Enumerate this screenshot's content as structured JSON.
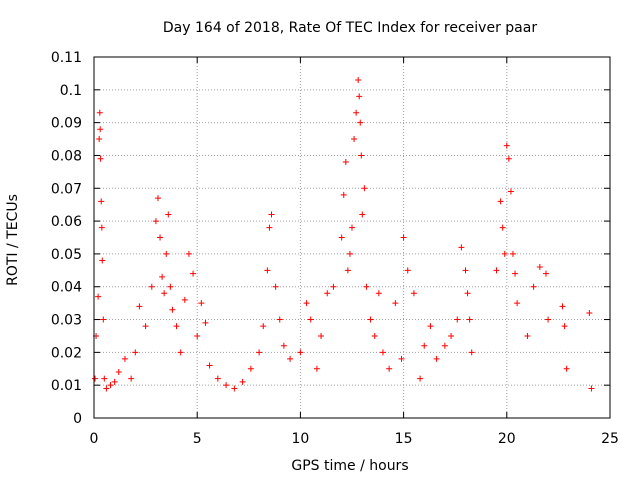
{
  "chart_data": {
    "type": "scatter",
    "title": "Day 164 of 2018, Rate Of TEC Index for receiver paar",
    "xlabel": "GPS time / hours",
    "ylabel": "ROTI / TECUs",
    "xlim": [
      0,
      25
    ],
    "ylim": [
      0,
      0.11
    ],
    "x_ticks": [
      "0",
      "5",
      "10",
      "15",
      "20",
      "25"
    ],
    "y_ticks": [
      "0",
      "0.01",
      "0.02",
      "0.03",
      "0.04",
      "0.05",
      "0.06",
      "0.07",
      "0.08",
      "0.09",
      "0.1",
      "0.11"
    ],
    "grid": true,
    "marker": "+",
    "marker_color": "#ff0000",
    "series": [
      {
        "x": [
          0.05,
          0.1,
          0.2,
          0.25,
          0.28,
          0.3,
          0.32,
          0.35,
          0.38,
          0.4,
          0.45,
          0.5,
          0.6,
          0.8,
          1.0,
          1.2,
          1.5,
          1.8,
          2.0,
          2.2,
          2.5,
          2.8,
          3.0,
          3.1,
          3.2,
          3.3,
          3.4,
          3.5,
          3.6,
          3.7,
          3.8,
          4.0,
          4.2,
          4.4,
          4.6,
          4.8,
          5.0,
          5.2,
          5.4,
          5.6,
          6.0,
          6.4,
          6.8,
          7.2,
          7.6,
          8.0,
          8.2,
          8.4,
          8.5,
          8.6,
          8.8,
          9.0,
          9.2,
          9.5,
          10.0,
          10.3,
          10.5,
          10.8,
          11.0,
          11.3,
          11.6,
          12.0,
          12.1,
          12.2,
          12.3,
          12.4,
          12.5,
          12.6,
          12.7,
          12.8,
          12.85,
          12.9,
          12.95,
          13.0,
          13.1,
          13.2,
          13.4,
          13.6,
          13.8,
          14.0,
          14.3,
          14.6,
          14.9,
          15.0,
          15.2,
          15.5,
          15.8,
          16.0,
          16.3,
          16.6,
          17.0,
          17.3,
          17.6,
          17.8,
          18.0,
          18.1,
          18.2,
          18.3,
          19.5,
          19.7,
          19.8,
          19.9,
          20.0,
          20.1,
          20.2,
          20.3,
          20.4,
          20.5,
          21.0,
          21.3,
          21.6,
          21.9,
          22.0,
          22.7,
          22.8,
          22.9,
          24.0,
          24.1
        ],
        "y": [
          0.012,
          0.025,
          0.037,
          0.085,
          0.093,
          0.088,
          0.079,
          0.066,
          0.058,
          0.048,
          0.03,
          0.012,
          0.009,
          0.01,
          0.011,
          0.014,
          0.018,
          0.012,
          0.02,
          0.034,
          0.028,
          0.04,
          0.06,
          0.067,
          0.055,
          0.043,
          0.038,
          0.05,
          0.062,
          0.04,
          0.033,
          0.028,
          0.02,
          0.036,
          0.05,
          0.044,
          0.025,
          0.035,
          0.029,
          0.016,
          0.012,
          0.01,
          0.009,
          0.011,
          0.015,
          0.02,
          0.028,
          0.045,
          0.058,
          0.062,
          0.04,
          0.03,
          0.022,
          0.018,
          0.02,
          0.035,
          0.03,
          0.015,
          0.025,
          0.038,
          0.04,
          0.055,
          0.068,
          0.078,
          0.045,
          0.05,
          0.058,
          0.085,
          0.093,
          0.103,
          0.098,
          0.09,
          0.08,
          0.062,
          0.07,
          0.04,
          0.03,
          0.025,
          0.038,
          0.02,
          0.015,
          0.035,
          0.018,
          0.055,
          0.045,
          0.038,
          0.012,
          0.022,
          0.028,
          0.018,
          0.022,
          0.025,
          0.03,
          0.052,
          0.045,
          0.038,
          0.03,
          0.02,
          0.045,
          0.066,
          0.058,
          0.05,
          0.083,
          0.079,
          0.069,
          0.05,
          0.044,
          0.035,
          0.025,
          0.04,
          0.046,
          0.044,
          0.03,
          0.034,
          0.028,
          0.015,
          0.032,
          0.009
        ]
      }
    ]
  }
}
